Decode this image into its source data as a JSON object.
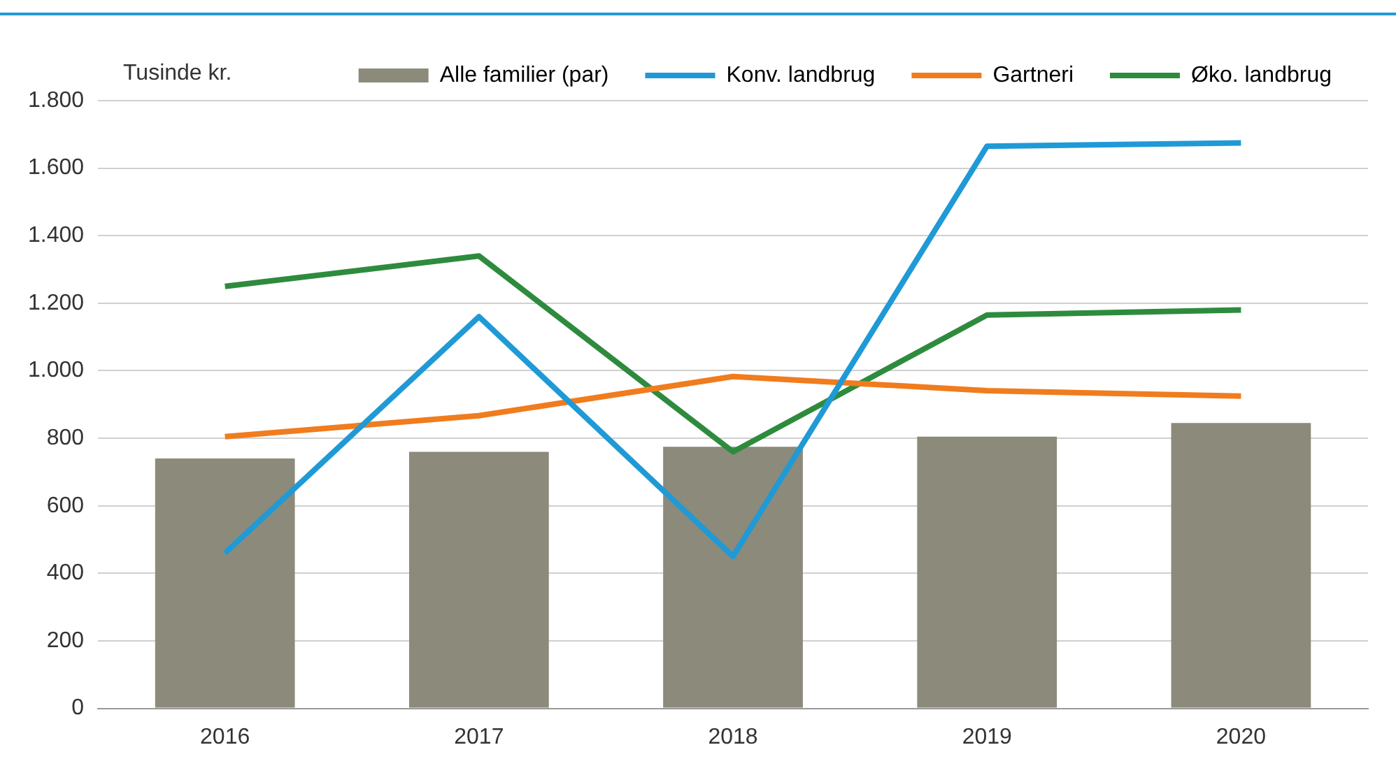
{
  "chart_data": {
    "type": "bar",
    "ylabel": "Tusinde kr.",
    "categories": [
      "2016",
      "2017",
      "2018",
      "2019",
      "2020"
    ],
    "series": [
      {
        "name": "Alle familier (par)",
        "color": "#8c8a7a",
        "values": [
          740,
          760,
          775,
          805,
          845
        ]
      },
      {
        "name": "Konv. landbrug",
        "type": "line",
        "color": "#1f9ad6",
        "values": [
          460,
          1160,
          450,
          1665,
          1675
        ]
      },
      {
        "name": "Gartneri",
        "type": "line",
        "color": "#f07c1e",
        "values": [
          805,
          867,
          983,
          941,
          925
        ]
      },
      {
        "name": "Øko. landbrug",
        "type": "line",
        "color": "#2e8b3e",
        "values": [
          1250,
          1340,
          760,
          1165,
          1180
        ]
      }
    ],
    "ylim": [
      0,
      1800
    ],
    "yticks": [
      {
        "value": 0,
        "label": "0"
      },
      {
        "value": 200,
        "label": "200"
      },
      {
        "value": 400,
        "label": "400"
      },
      {
        "value": 600,
        "label": "600"
      },
      {
        "value": 800,
        "label": "800"
      },
      {
        "value": 1000,
        "label": "1.000"
      },
      {
        "value": 1200,
        "label": "1.200"
      },
      {
        "value": 1400,
        "label": "1.400"
      },
      {
        "value": 1600,
        "label": "1.600"
      },
      {
        "value": 1800,
        "label": "1.800"
      }
    ],
    "grid": "y",
    "legend": "top",
    "marker": "none"
  }
}
